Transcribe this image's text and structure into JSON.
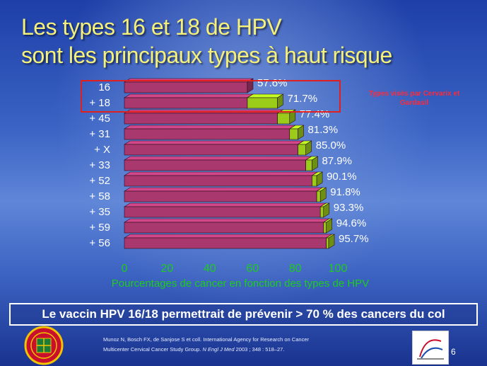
{
  "title": {
    "line1": "Les types 16 et 18 de HPV",
    "line2": "sont les principaux types à haut risque"
  },
  "annotation": "Types visés par Cervarix et Gardasil",
  "banner": "Le vaccin HPV 16/18 permettrait de prévenir > 70 % des cancers du col",
  "citation": {
    "line1": "Munoz N, Bosch FX, de Sanjose S et coll. International Agency for Research on Cancer",
    "line2_prefix": "Multicenter Cervical Cancer Study Group. ",
    "journal": "N Engl J Med",
    "line2_suffix": " 2003 ; 348 : 518–27."
  },
  "page_number": "6",
  "colors": {
    "bar": "#a8386e",
    "increment": "#9ccc1a",
    "label_text": "#ffffff",
    "xlabel": "#1ecb1e",
    "highlight": "#e0201f"
  },
  "chart_data": {
    "type": "bar",
    "orientation": "horizontal",
    "stacked_cumulative": true,
    "categories": [
      "16",
      "+ 18",
      "+ 45",
      "+ 31",
      "+ X",
      "+ 33",
      "+ 52",
      "+ 58",
      "+ 35",
      "+ 59",
      "+ 56"
    ],
    "values": [
      57.6,
      71.7,
      77.4,
      81.3,
      85.0,
      87.9,
      90.1,
      91.8,
      93.3,
      94.6,
      95.7
    ],
    "value_labels": [
      "57.6%",
      "71.7%",
      "77.4%",
      "81.3%",
      "85.0%",
      "87.9%",
      "90.1%",
      "91.8%",
      "93.3%",
      "94.6%",
      "95.7%"
    ],
    "xlabel": "Pourcentages de cancer en fonction des types de HPV",
    "xlim": [
      0,
      100
    ],
    "xticks": [
      0,
      20,
      40,
      60,
      80,
      100
    ],
    "grid": false,
    "legend": "none"
  }
}
